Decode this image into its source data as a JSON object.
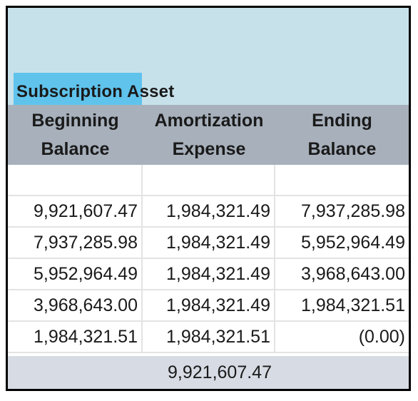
{
  "section_title": "Subscription Asset",
  "columns": [
    {
      "line1": "Beginning",
      "line2": "Balance"
    },
    {
      "line1": "Amortization",
      "line2": "Expense"
    },
    {
      "line1": "Ending",
      "line2": "Balance"
    }
  ],
  "rows": [
    [
      "",
      "",
      ""
    ],
    [
      "9,921,607.47",
      "1,984,321.49",
      "7,937,285.98"
    ],
    [
      "7,937,285.98",
      "1,984,321.49",
      "5,952,964.49"
    ],
    [
      "5,952,964.49",
      "1,984,321.49",
      "3,968,643.00"
    ],
    [
      "3,968,643.00",
      "1,984,321.49",
      "1,984,321.51"
    ],
    [
      "1,984,321.51",
      "1,984,321.51",
      "(0.00)"
    ]
  ],
  "total": [
    "",
    "9,921,607.47",
    ""
  ],
  "colors": {
    "banner": "#c7e1ea",
    "accent": "#5fc3ec",
    "header": "#a7b0bb",
    "total": "#d7dce4"
  }
}
